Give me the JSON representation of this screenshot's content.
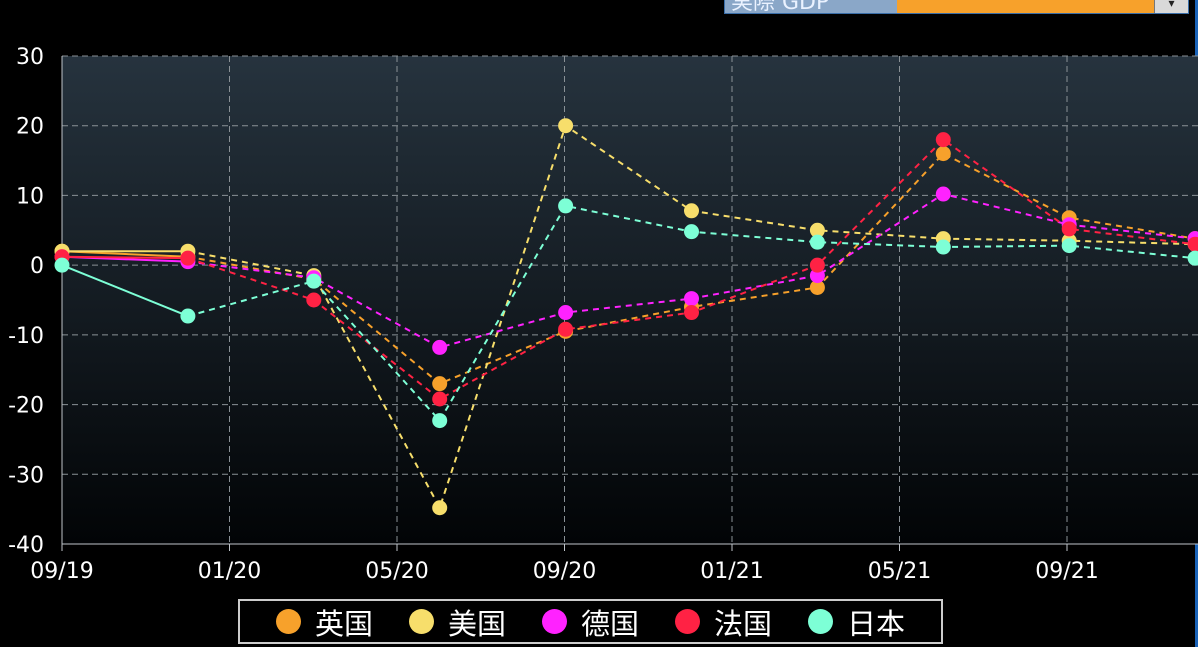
{
  "selector": {
    "label": "実際 GDP",
    "icon": "chevron-down-icon"
  },
  "chart_data": {
    "type": "line",
    "x": [
      "09/19",
      "12/19",
      "03/20",
      "06/20",
      "09/20",
      "12/20",
      "03/21",
      "06/21",
      "09/21",
      "12/21"
    ],
    "xticks": [
      "09/19",
      "01/20",
      "05/20",
      "09/20",
      "01/21",
      "05/21",
      "09/21"
    ],
    "ylim": [
      -40,
      30
    ],
    "yticks": [
      30,
      20,
      10,
      0,
      -10,
      -20,
      -30,
      -40
    ],
    "grid": true,
    "legend_position": "bottom",
    "series": [
      {
        "name": "英国",
        "color": "#f7a12b",
        "values": [
          2.0,
          1.2,
          -2.0,
          -17.0,
          -9.5,
          -6.0,
          -3.2,
          16.0,
          6.8,
          3.8
        ]
      },
      {
        "name": "美国",
        "color": "#f7de6b",
        "values": [
          2.0,
          2.0,
          -1.5,
          -34.8,
          20.0,
          7.8,
          5.0,
          3.8,
          3.5,
          3.0
        ]
      },
      {
        "name": "德国",
        "color": "#ff22ff",
        "values": [
          1.2,
          0.5,
          -1.8,
          -11.8,
          -6.8,
          -4.8,
          -1.5,
          10.2,
          5.8,
          3.8
        ]
      },
      {
        "name": "法国",
        "color": "#ff2244",
        "values": [
          1.2,
          1.0,
          -5.0,
          -19.2,
          -9.2,
          -6.8,
          0.0,
          18.0,
          5.2,
          3.0
        ]
      },
      {
        "name": "日本",
        "color": "#7dffd6",
        "values": [
          0.0,
          -7.3,
          -2.3,
          -22.3,
          8.5,
          4.8,
          3.3,
          2.6,
          2.8,
          1.0
        ]
      }
    ]
  }
}
